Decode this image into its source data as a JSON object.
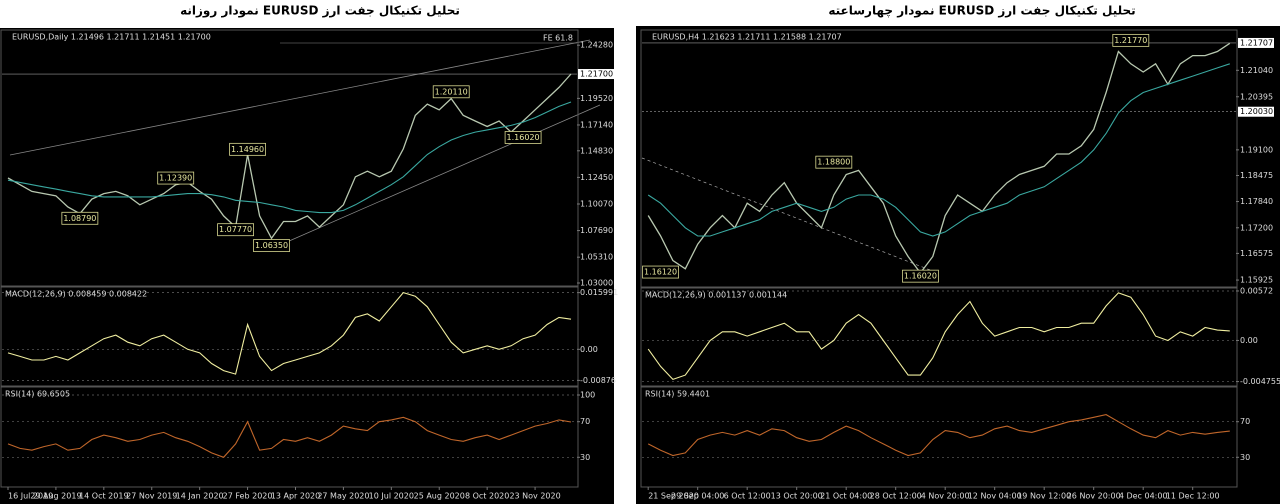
{
  "chart_data": [
    {
      "type": "line",
      "title": "تحلیل تکنیکال جفت ارز EURUSD نمودار روزانه",
      "subtitle": "EURUSD,Daily  1.21496 1.21711 1.21451 1.21700",
      "ylim": [
        1.03,
        1.2546
      ],
      "yticks": [
        {
          "value": 1.2428,
          "label": "1.24280"
        },
        {
          "value": 1.1952,
          "label": "1.19520"
        },
        {
          "value": 1.1714,
          "label": "1.17140"
        },
        {
          "value": 1.1483,
          "label": "1.14830"
        },
        {
          "value": 1.1245,
          "label": "1.12450"
        },
        {
          "value": 1.1007,
          "label": "1.10070"
        },
        {
          "value": 1.0769,
          "label": "1.07690"
        },
        {
          "value": 1.0531,
          "label": "1.05310"
        },
        {
          "value": 1.03,
          "label": "1.03000"
        }
      ],
      "series": [
        {
          "color": "#b8c8b0",
          "values": [
            1.124,
            1.118,
            1.112,
            1.11,
            1.108,
            1.098,
            1.092,
            1.105,
            1.11,
            1.112,
            1.108,
            1.1,
            1.105,
            1.11,
            1.118,
            1.12,
            1.112,
            1.105,
            1.09,
            1.08,
            1.145,
            1.09,
            1.07,
            1.085,
            1.085,
            1.09,
            1.08,
            1.09,
            1.1,
            1.125,
            1.13,
            1.125,
            1.13,
            1.15,
            1.18,
            1.19,
            1.185,
            1.195,
            1.18,
            1.175,
            1.17,
            1.175,
            1.165,
            1.175,
            1.185,
            1.195,
            1.205,
            1.217
          ]
        },
        {
          "color": "#3aa8a0",
          "values": [
            1.122,
            1.12,
            1.118,
            1.116,
            1.114,
            1.112,
            1.11,
            1.108,
            1.107,
            1.107,
            1.107,
            1.107,
            1.107,
            1.108,
            1.109,
            1.11,
            1.11,
            1.109,
            1.107,
            1.104,
            1.103,
            1.102,
            1.1,
            1.098,
            1.095,
            1.094,
            1.093,
            1.093,
            1.095,
            1.1,
            1.106,
            1.112,
            1.118,
            1.125,
            1.135,
            1.145,
            1.152,
            1.158,
            1.162,
            1.165,
            1.167,
            1.169,
            1.171,
            1.174,
            1.178,
            1.183,
            1.188,
            1.192
          ]
        }
      ],
      "levels": [
        {
          "value": 1.217,
          "label": "1.21700"
        }
      ],
      "fibo_label": "FE 61.8",
      "price_labels": [
        {
          "value": 1.0879,
          "label": "1.08790",
          "x": 6
        },
        {
          "value": 1.1239,
          "label": "1.12390",
          "x": 14
        },
        {
          "value": 1.1496,
          "label": "1.14960",
          "x": 20
        },
        {
          "value": 1.0777,
          "label": "1.07770",
          "x": 19
        },
        {
          "value": 1.0635,
          "label": "1.06350",
          "x": 22
        },
        {
          "value": 1.2011,
          "label": "1.20110",
          "x": 37
        },
        {
          "value": 1.1602,
          "label": "1.16020",
          "x": 43
        }
      ]
    },
    {
      "type": "line",
      "title": "MACD(12,26,9) 0.008459 0.008422",
      "ylim": [
        -0.0095,
        0.0173
      ],
      "grid": true,
      "yticks": [
        0.015991,
        {
          "value": 0,
          "label": "0.00"
        },
        -0.00876
      ],
      "series": [
        {
          "color": "#f0eea0",
          "values": [
            -0.001,
            -0.002,
            -0.003,
            -0.003,
            -0.002,
            -0.003,
            -0.001,
            0.001,
            0.003,
            0.004,
            0.002,
            0.001,
            0.003,
            0.004,
            0.002,
            0.0,
            -0.001,
            -0.004,
            -0.006,
            -0.007,
            0.007,
            -0.002,
            -0.006,
            -0.004,
            -0.003,
            -0.002,
            -0.001,
            0.001,
            0.004,
            0.009,
            0.01,
            0.008,
            0.012,
            0.016,
            0.015,
            0.012,
            0.007,
            0.002,
            -0.001,
            0.0,
            0.001,
            0.0,
            0.001,
            0.003,
            0.004,
            0.007,
            0.009,
            0.0085
          ]
        }
      ]
    },
    {
      "type": "line",
      "title": "RSI(14) 69.6505",
      "ylim": [
        0,
        100
      ],
      "grid": true,
      "yticks": [
        100,
        70,
        30
      ],
      "categories": [
        "16 Jul 2019",
        null,
        null,
        null,
        "29 Aug 2019",
        null,
        null,
        null,
        "14 Oct 2019",
        null,
        null,
        null,
        "27 Nov 2019",
        null,
        null,
        null,
        "14 Jan 2020",
        null,
        null,
        null,
        "27 Feb 2020",
        null,
        null,
        null,
        "13 Apr 2020",
        null,
        null,
        null,
        "27 May 2020",
        null,
        null,
        null,
        "10 Jul 2020",
        null,
        null,
        null,
        "25 Aug 2020",
        null,
        null,
        null,
        "8 Oct 2020",
        null,
        null,
        null,
        "23 Nov 2020",
        null,
        null,
        null
      ],
      "series": [
        {
          "color": "#c0662a",
          "values": [
            45,
            40,
            38,
            42,
            45,
            38,
            40,
            50,
            55,
            52,
            48,
            50,
            55,
            58,
            52,
            48,
            42,
            35,
            30,
            45,
            70,
            38,
            40,
            50,
            48,
            52,
            48,
            55,
            65,
            62,
            60,
            70,
            72,
            75,
            70,
            60,
            55,
            50,
            48,
            52,
            55,
            50,
            55,
            60,
            65,
            68,
            72,
            69.6505
          ]
        }
      ]
    },
    {
      "type": "line",
      "title": "تحلیل تکنیکال جفت ارز EURUSD نمودار چهارساعته",
      "subtitle": "EURUSD,H4  1.21623 1.21711 1.21588 1.21707",
      "ylim": [
        1.1578,
        1.2195
      ],
      "yticks": [
        {
          "value": 1.2104,
          "label": "1.21040"
        },
        1.20395,
        {
          "value": 1.191,
          "label": "1.19100"
        },
        1.18475,
        {
          "value": 1.1784,
          "label": "1.17840"
        },
        {
          "value": 1.172,
          "label": "1.17200"
        },
        1.16575,
        1.15925
      ],
      "series": [
        {
          "color": "#b8c8b0",
          "values": [
            1.175,
            1.17,
            1.164,
            1.162,
            1.168,
            1.172,
            1.175,
            1.172,
            1.178,
            1.176,
            1.18,
            1.183,
            1.178,
            1.175,
            1.172,
            1.18,
            1.185,
            1.186,
            1.182,
            1.178,
            1.17,
            1.165,
            1.161,
            1.165,
            1.175,
            1.18,
            1.178,
            1.176,
            1.18,
            1.183,
            1.185,
            1.186,
            1.187,
            1.19,
            1.19,
            1.192,
            1.196,
            1.205,
            1.215,
            1.212,
            1.21,
            1.212,
            1.207,
            1.212,
            1.214,
            1.214,
            1.215,
            1.217
          ]
        },
        {
          "color": "#3aa8a0",
          "values": [
            1.18,
            1.178,
            1.175,
            1.172,
            1.17,
            1.17,
            1.171,
            1.172,
            1.173,
            1.174,
            1.176,
            1.177,
            1.178,
            1.177,
            1.176,
            1.177,
            1.179,
            1.18,
            1.18,
            1.179,
            1.177,
            1.174,
            1.171,
            1.17,
            1.171,
            1.173,
            1.175,
            1.176,
            1.177,
            1.178,
            1.18,
            1.181,
            1.182,
            1.184,
            1.186,
            1.188,
            1.191,
            1.195,
            1.2,
            1.203,
            1.205,
            1.206,
            1.207,
            1.208,
            1.209,
            1.21,
            1.211,
            1.212
          ]
        }
      ],
      "levels": [
        {
          "value": 1.21707,
          "label": "1.21707"
        },
        {
          "value": 1.2003,
          "label": "1.20030"
        }
      ],
      "price_labels": [
        {
          "value": 1.2177,
          "label": "1.21770",
          "x": 39
        },
        {
          "value": 1.188,
          "label": "1.18800",
          "x": 15
        },
        {
          "value": 1.1612,
          "label": "1.16120",
          "x": 1
        },
        {
          "value": 1.1602,
          "label": "1.16020",
          "x": 22
        }
      ]
    },
    {
      "type": "line",
      "title": "MACD(12,26,9) 0.001137 0.001144",
      "ylim": [
        -0.00515,
        0.00618
      ],
      "grid": true,
      "yticks": [
        0.00572,
        {
          "value": 0,
          "label": "0.00"
        },
        -0.004755
      ],
      "series": [
        {
          "color": "#f0eea0",
          "values": [
            -0.001,
            -0.003,
            -0.0045,
            -0.004,
            -0.002,
            0.0,
            0.001,
            0.001,
            0.0005,
            0.001,
            0.0015,
            0.002,
            0.001,
            0.001,
            -0.001,
            0.0,
            0.002,
            0.003,
            0.002,
            0.0,
            -0.002,
            -0.004,
            -0.004,
            -0.002,
            0.001,
            0.003,
            0.0045,
            0.002,
            0.0005,
            0.001,
            0.0015,
            0.0015,
            0.001,
            0.0015,
            0.0015,
            0.002,
            0.002,
            0.004,
            0.0055,
            0.005,
            0.003,
            0.0005,
            0.0,
            0.001,
            0.0005,
            0.0015,
            0.0012,
            0.0011
          ]
        }
      ]
    },
    {
      "type": "line",
      "title": "RSI(14) 59.4401",
      "ylim": [
        0,
        100
      ],
      "grid": true,
      "yticks": [
        70,
        30
      ],
      "categories": [
        "21 Sep 2020",
        null,
        null,
        null,
        "29 Sep 04:00",
        null,
        null,
        null,
        "6 Oct 12:00",
        null,
        null,
        null,
        "13 Oct 20:00",
        null,
        null,
        null,
        "21 Oct 04:00",
        null,
        null,
        null,
        "28 Oct 12:00",
        null,
        null,
        null,
        "4 Nov 20:00",
        null,
        null,
        null,
        "12 Nov 04:00",
        null,
        null,
        null,
        "19 Nov 12:00",
        null,
        null,
        null,
        "26 Nov 20:00",
        null,
        null,
        null,
        "4 Dec 04:00",
        null,
        null,
        null,
        "11 Dec 12:00",
        null,
        null,
        null
      ],
      "series": [
        {
          "color": "#c0662a",
          "values": [
            45,
            38,
            32,
            35,
            50,
            55,
            58,
            55,
            60,
            55,
            62,
            60,
            52,
            48,
            50,
            58,
            65,
            60,
            52,
            45,
            38,
            32,
            35,
            50,
            60,
            58,
            52,
            55,
            62,
            65,
            60,
            58,
            62,
            66,
            70,
            72,
            75,
            78,
            70,
            62,
            55,
            52,
            60,
            55,
            58,
            56,
            58,
            59.4401
          ]
        }
      ]
    }
  ]
}
